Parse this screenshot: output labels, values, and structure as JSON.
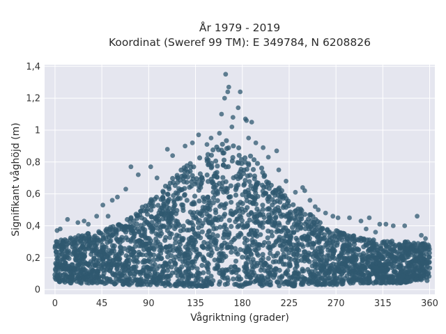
{
  "chart_data": {
    "type": "scatter",
    "title": "År 1979 - 2019",
    "subtitle": "Koordinat (Sweref 99 TM): E 349784, N 6208826",
    "xlabel": "Vågriktning (grader)",
    "ylabel": "Signifikant våghöjd (m)",
    "xlim": [
      -10,
      365
    ],
    "ylim": [
      -0.03,
      1.41
    ],
    "x_ticks": [
      0,
      45,
      90,
      135,
      180,
      225,
      270,
      315,
      360
    ],
    "x_tick_labels": [
      "0",
      "45",
      "90",
      "135",
      "180",
      "225",
      "270",
      "315",
      "360"
    ],
    "y_ticks": [
      0,
      0.2,
      0.4,
      0.6,
      0.8,
      1.0,
      1.2,
      1.4
    ],
    "y_tick_labels": [
      "0",
      "0,2",
      "0,4",
      "0,6",
      "0,8",
      "1",
      "1,2",
      "1,4"
    ],
    "grid": true,
    "marker_color": "#2f5870",
    "plot_background": "#e5e6ef",
    "envelope": {
      "x": [
        0,
        15,
        30,
        45,
        60,
        75,
        90,
        105,
        120,
        135,
        150,
        165,
        180,
        195,
        210,
        225,
        240,
        255,
        270,
        285,
        300,
        315,
        330,
        345,
        360
      ],
      "y_min": [
        0.05,
        0.04,
        0.04,
        0.04,
        0.03,
        0.03,
        0.03,
        0.02,
        0.02,
        0.02,
        0.02,
        0.02,
        0.02,
        0.02,
        0.02,
        0.02,
        0.03,
        0.03,
        0.03,
        0.04,
        0.04,
        0.04,
        0.04,
        0.05,
        0.05
      ],
      "y_max": [
        0.3,
        0.33,
        0.35,
        0.37,
        0.41,
        0.47,
        0.55,
        0.65,
        0.75,
        0.82,
        0.88,
        0.95,
        0.9,
        0.8,
        0.68,
        0.57,
        0.5,
        0.42,
        0.37,
        0.34,
        0.32,
        0.31,
        0.3,
        0.3,
        0.29
      ]
    },
    "outliers": [
      {
        "x": 164,
        "y": 1.35
      },
      {
        "x": 167,
        "y": 1.27
      },
      {
        "x": 166,
        "y": 1.24
      },
      {
        "x": 178,
        "y": 1.24
      },
      {
        "x": 163,
        "y": 1.2
      },
      {
        "x": 176,
        "y": 1.14
      },
      {
        "x": 160,
        "y": 1.1
      },
      {
        "x": 183,
        "y": 1.07
      },
      {
        "x": 184,
        "y": 1.06
      },
      {
        "x": 189,
        "y": 1.05
      },
      {
        "x": 171,
        "y": 1.08
      },
      {
        "x": 170,
        "y": 1.02
      },
      {
        "x": 158,
        "y": 0.98
      },
      {
        "x": 193,
        "y": 0.92
      },
      {
        "x": 186,
        "y": 0.95
      },
      {
        "x": 150,
        "y": 0.95
      },
      {
        "x": 138,
        "y": 0.97
      },
      {
        "x": 146,
        "y": 0.91
      },
      {
        "x": 108,
        "y": 0.88
      },
      {
        "x": 113,
        "y": 0.84
      },
      {
        "x": 125,
        "y": 0.9
      },
      {
        "x": 132,
        "y": 0.92
      },
      {
        "x": 200,
        "y": 0.89
      },
      {
        "x": 213,
        "y": 0.87
      },
      {
        "x": 205,
        "y": 0.83
      },
      {
        "x": 73,
        "y": 0.77
      },
      {
        "x": 92,
        "y": 0.77
      },
      {
        "x": 80,
        "y": 0.72
      },
      {
        "x": 98,
        "y": 0.7
      },
      {
        "x": 215,
        "y": 0.75
      },
      {
        "x": 222,
        "y": 0.68
      },
      {
        "x": 238,
        "y": 0.64
      },
      {
        "x": 240,
        "y": 0.62
      },
      {
        "x": 231,
        "y": 0.61
      },
      {
        "x": 68,
        "y": 0.63
      },
      {
        "x": 60,
        "y": 0.58
      },
      {
        "x": 55,
        "y": 0.56
      },
      {
        "x": 245,
        "y": 0.56
      },
      {
        "x": 250,
        "y": 0.52
      },
      {
        "x": 253,
        "y": 0.5
      },
      {
        "x": 46,
        "y": 0.53
      },
      {
        "x": 40,
        "y": 0.46
      },
      {
        "x": 51,
        "y": 0.46
      },
      {
        "x": 28,
        "y": 0.43
      },
      {
        "x": 12,
        "y": 0.44
      },
      {
        "x": 5,
        "y": 0.38
      },
      {
        "x": 2,
        "y": 0.37
      },
      {
        "x": 22,
        "y": 0.42
      },
      {
        "x": 32,
        "y": 0.41
      },
      {
        "x": 260,
        "y": 0.48
      },
      {
        "x": 267,
        "y": 0.46
      },
      {
        "x": 272,
        "y": 0.45
      },
      {
        "x": 283,
        "y": 0.45
      },
      {
        "x": 294,
        "y": 0.43
      },
      {
        "x": 302,
        "y": 0.45
      },
      {
        "x": 299,
        "y": 0.38
      },
      {
        "x": 312,
        "y": 0.41
      },
      {
        "x": 318,
        "y": 0.41
      },
      {
        "x": 325,
        "y": 0.4
      },
      {
        "x": 336,
        "y": 0.4
      },
      {
        "x": 348,
        "y": 0.46
      },
      {
        "x": 352,
        "y": 0.34
      },
      {
        "x": 356,
        "y": 0.32
      },
      {
        "x": 308,
        "y": 0.36
      }
    ]
  }
}
